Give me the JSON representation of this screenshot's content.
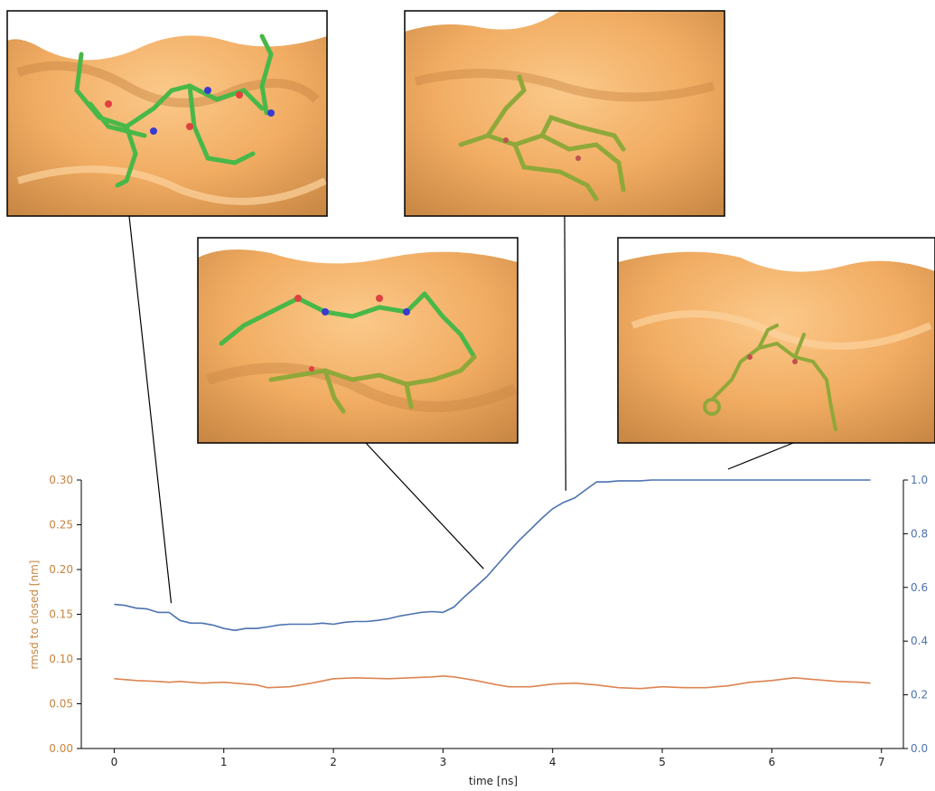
{
  "chart_data": {
    "type": "line",
    "xlabel": "time [ns]",
    "ylabel_left": "rmsd to closed [nm]",
    "ylabel_right": "",
    "xlim": [
      -0.3,
      7.2
    ],
    "ylim_left": [
      0.0,
      0.3
    ],
    "ylim_right": [
      0.0,
      1.0
    ],
    "x_ticks": [
      "0",
      "1",
      "2",
      "3",
      "4",
      "5",
      "6",
      "7"
    ],
    "y_ticks_left": [
      "0.00",
      "0.05",
      "0.10",
      "0.15",
      "0.20",
      "0.25",
      "0.30"
    ],
    "y_ticks_right": [
      "0.0",
      "0.2",
      "0.4",
      "0.6",
      "0.8",
      "1.0"
    ],
    "grid": false,
    "series": [
      {
        "axis": "right",
        "color": "#4c72b0",
        "x": [
          0,
          0.1,
          0.2,
          0.3,
          0.4,
          0.5,
          0.6,
          0.7,
          0.8,
          0.9,
          1.0,
          1.1,
          1.2,
          1.3,
          1.4,
          1.5,
          1.6,
          1.7,
          1.8,
          1.9,
          2.0,
          2.1,
          2.2,
          2.3,
          2.4,
          2.5,
          2.6,
          2.7,
          2.8,
          2.9,
          3.0,
          3.1,
          3.2,
          3.3,
          3.4,
          3.5,
          3.6,
          3.7,
          3.8,
          3.9,
          4.0,
          4.1,
          4.2,
          4.3,
          4.4,
          4.5,
          4.6,
          4.7,
          4.8,
          4.9,
          5.0,
          5.5,
          6.0,
          6.5,
          6.9
        ],
        "values": [
          0.537,
          0.533,
          0.523,
          0.52,
          0.507,
          0.507,
          0.477,
          0.467,
          0.467,
          0.46,
          0.447,
          0.44,
          0.447,
          0.447,
          0.453,
          0.46,
          0.463,
          0.463,
          0.463,
          0.467,
          0.463,
          0.47,
          0.473,
          0.473,
          0.477,
          0.483,
          0.493,
          0.5,
          0.507,
          0.51,
          0.507,
          0.527,
          0.567,
          0.603,
          0.64,
          0.687,
          0.733,
          0.777,
          0.817,
          0.857,
          0.893,
          0.917,
          0.933,
          0.963,
          0.993,
          0.993,
          0.997,
          0.997,
          0.997,
          1.0,
          1.0,
          1.0,
          1.0,
          1.0,
          1.0
        ]
      },
      {
        "axis": "left",
        "color": "#dd8452",
        "x": [
          0,
          0.2,
          0.4,
          0.5,
          0.6,
          0.8,
          1.0,
          1.2,
          1.3,
          1.4,
          1.6,
          1.8,
          2.0,
          2.2,
          2.5,
          2.7,
          2.9,
          3.0,
          3.1,
          3.3,
          3.5,
          3.6,
          3.8,
          4.0,
          4.2,
          4.4,
          4.6,
          4.8,
          5.0,
          5.2,
          5.4,
          5.6,
          5.8,
          6.0,
          6.2,
          6.4,
          6.6,
          6.8,
          6.9
        ],
        "values": [
          0.078,
          0.076,
          0.075,
          0.074,
          0.075,
          0.073,
          0.074,
          0.072,
          0.071,
          0.068,
          0.069,
          0.073,
          0.078,
          0.079,
          0.078,
          0.079,
          0.08,
          0.081,
          0.08,
          0.076,
          0.071,
          0.069,
          0.069,
          0.072,
          0.073,
          0.071,
          0.068,
          0.067,
          0.069,
          0.068,
          0.068,
          0.07,
          0.074,
          0.076,
          0.079,
          0.077,
          0.075,
          0.074,
          0.073
        ]
      }
    ],
    "annotations": [
      {
        "name": "snapshot-1",
        "time": 0.52
      },
      {
        "name": "snapshot-2",
        "time": 3.37
      },
      {
        "name": "snapshot-3",
        "time": 4.12
      },
      {
        "name": "snapshot-4",
        "time": 5.6
      }
    ]
  },
  "colors": {
    "left_axis": "#c8833f",
    "right_axis": "#4c72b0",
    "protein_surface": "#f0ad65",
    "ligand": "#48b848"
  },
  "images": [
    {
      "name": "snapshot-1",
      "description": "molecular snapshot"
    },
    {
      "name": "snapshot-2",
      "description": "molecular snapshot"
    },
    {
      "name": "snapshot-3",
      "description": "molecular snapshot"
    },
    {
      "name": "snapshot-4",
      "description": "molecular snapshot"
    }
  ]
}
